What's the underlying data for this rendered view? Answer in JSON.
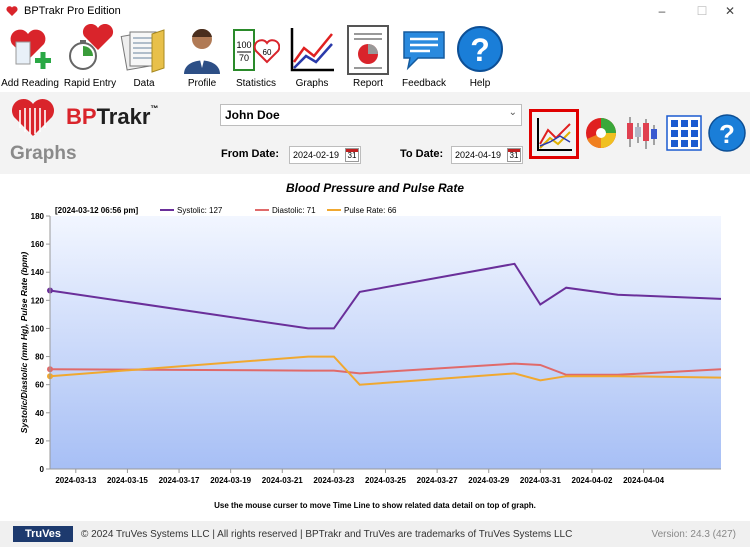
{
  "window": {
    "title": "BPTrakr Pro Edition",
    "minimize": "–",
    "maximize": "☐",
    "close": "✕"
  },
  "toolbar": {
    "items": [
      {
        "label": "Add Reading",
        "icon": "heart-plus-icon"
      },
      {
        "label": "Rapid Entry",
        "icon": "heart-stopwatch-icon"
      },
      {
        "label": "Data",
        "icon": "folder-data-icon"
      },
      {
        "label": "Profile",
        "icon": "person-icon"
      },
      {
        "label": "Statistics",
        "icon": "statistics-icon"
      },
      {
        "label": "Graphs",
        "icon": "line-graph-icon"
      },
      {
        "label": "Report",
        "icon": "report-icon"
      },
      {
        "label": "Feedback",
        "icon": "speech-bubble-icon"
      },
      {
        "label": "Help",
        "icon": "help-icon"
      }
    ]
  },
  "header": {
    "logo_text_bp": "BP",
    "logo_text_trakr": "Trakr",
    "logo_tm": "™",
    "page_title": "Graphs",
    "patient": "John Doe",
    "from_label": "From Date:",
    "from_date": "2024-02-19",
    "to_label": "To Date:",
    "to_date": "2024-04-19",
    "calendar_day": "31",
    "graph_buttons": [
      "line-graph-icon",
      "pie-chart-icon",
      "candlestick-chart-icon",
      "grid-view-icon",
      "help-icon"
    ]
  },
  "colors": {
    "systolic": "#6a2f9a",
    "diastolic": "#e06a6a",
    "pulse": "#f0a830",
    "accent_red": "#e00000",
    "plot_bg_top": "#f2f6ff",
    "plot_bg_bottom": "#a7bff5"
  },
  "chart_data": {
    "type": "line",
    "title": "Blood Pressure and Pulse Rate",
    "ylabel": "Systolic/Diastolic (mm Hg), Pulse Rate (bpm)",
    "ylim": [
      0,
      180
    ],
    "yticks": [
      0,
      20,
      40,
      60,
      80,
      100,
      120,
      140,
      160,
      180
    ],
    "xlim": [
      "2024-03-12",
      "2024-04-07"
    ],
    "x_ticks": [
      "2024-03-13",
      "2024-03-15",
      "2024-03-17",
      "2024-03-19",
      "2024-03-21",
      "2024-03-23",
      "2024-03-25",
      "2024-03-27",
      "2024-03-29",
      "2024-03-31",
      "2024-04-02",
      "2024-04-04"
    ],
    "x": [
      "2024-03-12",
      "2024-03-22",
      "2024-03-23",
      "2024-03-24",
      "2024-03-30",
      "2024-03-31",
      "2024-04-01",
      "2024-04-03",
      "2024-04-07"
    ],
    "series": [
      {
        "name": "Systolic",
        "values": [
          127,
          100,
          100,
          126,
          146,
          117,
          129,
          124,
          121
        ]
      },
      {
        "name": "Diastolic",
        "values": [
          71,
          70,
          70,
          68,
          75,
          74,
          67,
          67,
          71
        ]
      },
      {
        "name": "Pulse Rate",
        "values": [
          66,
          80,
          80,
          60,
          68,
          63,
          66,
          66,
          65
        ]
      }
    ],
    "legend": {
      "timestamp": "[2024-03-12  06:56 pm]",
      "entries": [
        "Systolic: 127",
        "Diastolic: 71",
        "Pulse Rate: 66"
      ],
      "position": "top-left"
    },
    "grid": false
  },
  "hint": "Use the mouse curser to move Time Line to show related data detail on top of graph.",
  "footer": {
    "brand": "TruVes",
    "copyright": "© 2024 TruVes Systems LLC | All rights reserved | BPTrakr and TruVes are trademarks of TruVes Systems LLC",
    "version": "Version: 24.3 (427)"
  }
}
